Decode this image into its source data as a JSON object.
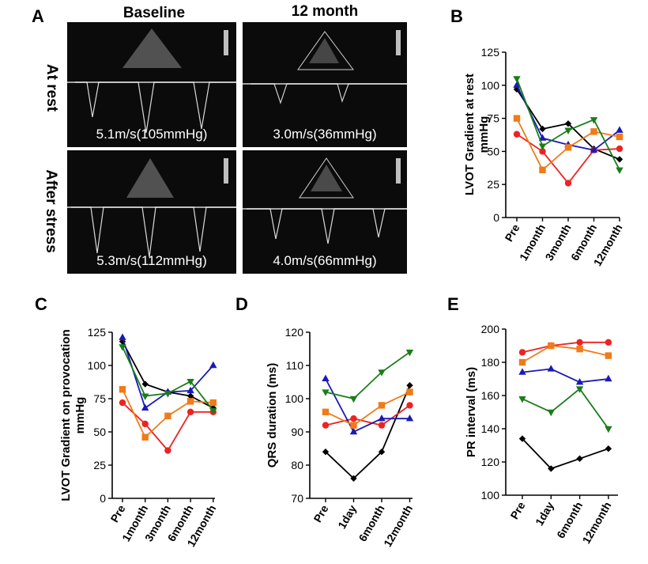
{
  "panel_labels": [
    "A",
    "B",
    "C",
    "D",
    "E"
  ],
  "panel_a": {
    "columns": [
      "Baseline",
      "12 month"
    ],
    "rows": [
      "At rest",
      "After stress"
    ],
    "velocities": [
      "5.1m/s(105mmHg)",
      "3.0m/s(36mmHg)",
      "5.3m/s(112mmHg)",
      "4.0m/s(66mmHg)"
    ]
  },
  "series_colors": [
    "#000000",
    "#ee2222",
    "#1a1ab8",
    "#ef7b1a",
    "#1a7d1a"
  ],
  "chart_data": [
    {
      "type": "line",
      "panel": "B",
      "ylabel": "LVOT Gradient at rest mmHg",
      "ylim": [
        0,
        125
      ],
      "yticks": [
        0,
        25,
        50,
        75,
        100,
        125
      ],
      "categories": [
        "Pre",
        "1month",
        "3month",
        "6month",
        "12month"
      ],
      "series": [
        {
          "color": "#000000",
          "marker": "diamond",
          "values": [
            97,
            67,
            71,
            52,
            44
          ]
        },
        {
          "color": "#ee2222",
          "marker": "circle",
          "values": [
            63,
            50,
            26,
            51,
            52
          ]
        },
        {
          "color": "#1a1ab8",
          "marker": "triangle-up",
          "values": [
            100,
            60,
            55,
            51,
            66
          ]
        },
        {
          "color": "#ef7b1a",
          "marker": "square",
          "values": [
            75,
            36,
            53,
            65,
            61
          ]
        },
        {
          "color": "#1a7d1a",
          "marker": "triangle-down",
          "values": [
            105,
            54,
            66,
            74,
            36
          ]
        }
      ]
    },
    {
      "type": "line",
      "panel": "C",
      "ylabel": "LVOT Gradient on provocation mmHg",
      "ylim": [
        0,
        125
      ],
      "yticks": [
        0,
        25,
        50,
        75,
        100,
        125
      ],
      "categories": [
        "Pre",
        "1month",
        "3month",
        "6month",
        "12month"
      ],
      "series": [
        {
          "color": "#000000",
          "marker": "diamond",
          "values": [
            118,
            86,
            80,
            77,
            68
          ]
        },
        {
          "color": "#ee2222",
          "marker": "circle",
          "values": [
            72,
            56,
            36,
            65,
            65
          ]
        },
        {
          "color": "#1a1ab8",
          "marker": "triangle-up",
          "values": [
            121,
            68,
            80,
            81,
            100
          ]
        },
        {
          "color": "#ef7b1a",
          "marker": "square",
          "values": [
            82,
            46,
            62,
            73,
            72
          ]
        },
        {
          "color": "#1a7d1a",
          "marker": "triangle-down",
          "values": [
            114,
            77,
            79,
            88,
            66
          ]
        }
      ]
    },
    {
      "type": "line",
      "panel": "D",
      "ylabel": "QRS duration (ms)",
      "ylim": [
        70,
        120
      ],
      "yticks": [
        70,
        80,
        90,
        100,
        110,
        120
      ],
      "categories": [
        "Pre",
        "1day",
        "6month",
        "12month"
      ],
      "series": [
        {
          "color": "#000000",
          "marker": "diamond",
          "values": [
            84,
            76,
            84,
            104
          ]
        },
        {
          "color": "#ee2222",
          "marker": "circle",
          "values": [
            92,
            94,
            92,
            98
          ]
        },
        {
          "color": "#1a1ab8",
          "marker": "triangle-up",
          "values": [
            106,
            90,
            94,
            94
          ]
        },
        {
          "color": "#ef7b1a",
          "marker": "square",
          "values": [
            96,
            92,
            98,
            102
          ]
        },
        {
          "color": "#1a7d1a",
          "marker": "triangle-down",
          "values": [
            102,
            100,
            108,
            114
          ]
        }
      ]
    },
    {
      "type": "line",
      "panel": "E",
      "ylabel": "PR interval (ms)",
      "ylim": [
        100,
        200
      ],
      "yticks": [
        100,
        120,
        140,
        160,
        180,
        200
      ],
      "categories": [
        "Pre",
        "1day",
        "6month",
        "12month"
      ],
      "series": [
        {
          "color": "#000000",
          "marker": "diamond",
          "values": [
            134,
            116,
            122,
            128
          ]
        },
        {
          "color": "#ee2222",
          "marker": "circle",
          "values": [
            186,
            190,
            192,
            192
          ]
        },
        {
          "color": "#1a1ab8",
          "marker": "triangle-up",
          "values": [
            174,
            176,
            168,
            170
          ]
        },
        {
          "color": "#ef7b1a",
          "marker": "square",
          "values": [
            180,
            190,
            188,
            184
          ]
        },
        {
          "color": "#1a7d1a",
          "marker": "triangle-down",
          "values": [
            158,
            150,
            164,
            140
          ]
        }
      ]
    }
  ]
}
